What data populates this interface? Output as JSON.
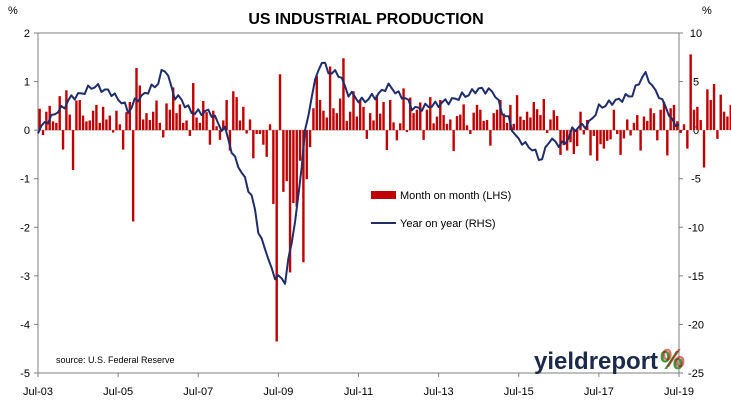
{
  "chart_data": {
    "type": "bar+line",
    "title": "US INDUSTRIAL PRODUCTION",
    "left_unit": "%",
    "right_unit": "%",
    "left_axis": {
      "min": -5,
      "max": 2,
      "ticks": [
        "2",
        "1",
        "0",
        "-1",
        "-2",
        "-3",
        "-4",
        "-5"
      ]
    },
    "right_axis": {
      "min": -25,
      "max": 10,
      "ticks": [
        "10",
        "5",
        "0",
        "-5",
        "-10",
        "-15",
        "-20",
        "-25"
      ]
    },
    "x_start": "2003-07",
    "x_end": "2019-07",
    "x_ticks": [
      "Jul-03",
      "Jul-05",
      "Jul-07",
      "Jul-09",
      "Jul-11",
      "Jul-13",
      "Jul-15",
      "Jul-17",
      "Jul-19"
    ],
    "series": [
      {
        "name": "Month on month (LHS)",
        "type": "bar",
        "axis": "left",
        "color": "#c00000",
        "start": "2003-07",
        "values": [
          0.44,
          -0.1,
          0.38,
          0.5,
          0.18,
          0.15,
          0.7,
          -0.4,
          0.82,
          0.32,
          -0.82,
          0.61,
          0.62,
          0.3,
          0.18,
          0.2,
          0.4,
          0.52,
          0.15,
          0.48,
          0.22,
          0.3,
          -0.05,
          0.4,
          0.12,
          -0.4,
          0.37,
          0.58,
          -1.88,
          1.28,
          0.92,
          0.22,
          0.35,
          0.21,
          0.38,
          0.61,
          0.15,
          -0.15,
          0.55,
          0.42,
          0.88,
          0.35,
          0.53,
          0.15,
          0.2,
          -0.12,
          0.97,
          0.26,
          0.15,
          0.6,
          0.37,
          -0.3,
          0.4,
          0.08,
          -0.2,
          0.2,
          0.62,
          -0.42,
          0.8,
          0.68,
          0.2,
          0.48,
          -0.07,
          0.22,
          -0.58,
          -0.08,
          -0.08,
          -0.3,
          -0.55,
          0.12,
          -1.52,
          -4.35,
          1.15,
          -1.27,
          -1.05,
          -2.93,
          -1.5,
          -1.58,
          -0.63,
          -2.72,
          -1.01,
          -0.35,
          0.45,
          1.12,
          0.62,
          0.4,
          0.26,
          1.31,
          0.45,
          0.35,
          0.65,
          1.48,
          0.19,
          0.38,
          0.8,
          0.28,
          0.62,
          0.48,
          -0.18,
          0.35,
          0.2,
          0.72,
          0.34,
          0.58,
          -0.41,
          0.62,
          0.16,
          -0.21,
          0.14,
          0.86,
          -0.04,
          0.67,
          0.35,
          0.42,
          0.57,
          -0.2,
          0.42,
          0.68,
          0.14,
          0.28,
          0.62,
          0.31,
          0.13,
          0.22,
          -0.43,
          0.29,
          0.32,
          0.53,
          0.1,
          -0.08,
          0.36,
          0.52,
          0.42,
          0.19,
          0.21,
          -0.32,
          0.35,
          0.42,
          0.62,
          0.34,
          0.15,
          0.52,
          0.13,
          0.72,
          0.28,
          0.21,
          0.38,
          0.26,
          0.58,
          0.43,
          0.31,
          0.64,
          -0.06,
          0.22,
          0.41,
          0.29,
          -0.51,
          -0.31,
          -0.42,
          -0.25,
          -0.49,
          -0.33,
          0.38,
          -0.09,
          0.21,
          -0.52,
          -0.12,
          -0.63,
          -0.29,
          -0.38,
          -0.22,
          -0.19,
          0.42,
          -0.08,
          -0.51,
          -0.17,
          0.22,
          -0.11,
          0.15,
          0.31,
          -0.42,
          0.28,
          0.19,
          0.45,
          0.35,
          -0.21,
          0.42,
          0.58,
          -0.52,
          0.45,
          0.52,
          0.18,
          -0.06,
          0.12,
          -0.38,
          1.56,
          0.42,
          0.48,
          0.21,
          -0.77,
          0.84,
          0.62,
          0.95,
          -0.18,
          0.73,
          0.38,
          0.28,
          0.52,
          0.78,
          -0.28,
          -0.45,
          -0.55,
          0.18,
          -0.62,
          0.38,
          0.23,
          -0.2
        ]
      },
      {
        "name": "Year on year (RHS)",
        "type": "line",
        "axis": "right",
        "color": "#1f2d6b",
        "knots": [
          [
            "2003-07",
            0.0
          ],
          [
            "2003-10",
            1.0
          ],
          [
            "2004-01",
            2.0
          ],
          [
            "2004-06",
            3.5
          ],
          [
            "2004-12",
            4.5
          ],
          [
            "2005-04",
            4.0
          ],
          [
            "2005-08",
            3.0
          ],
          [
            "2005-10",
            2.0
          ],
          [
            "2006-01",
            3.3
          ],
          [
            "2006-06",
            4.5
          ],
          [
            "2006-09",
            6.3
          ],
          [
            "2006-12",
            3.5
          ],
          [
            "2007-06",
            1.8
          ],
          [
            "2007-10",
            1.9
          ],
          [
            "2008-03",
            0.0
          ],
          [
            "2008-06",
            -3.0
          ],
          [
            "2008-09",
            -5.0
          ],
          [
            "2008-11",
            -7.0
          ],
          [
            "2009-02",
            -11.5
          ],
          [
            "2009-06",
            -15.0
          ],
          [
            "2009-09",
            -15.5
          ],
          [
            "2009-11",
            -11.5
          ],
          [
            "2010-01",
            -7.0
          ],
          [
            "2010-03",
            0.0
          ],
          [
            "2010-06",
            5.0
          ],
          [
            "2010-08",
            7.2
          ],
          [
            "2010-10",
            6.0
          ],
          [
            "2011-01",
            5.8
          ],
          [
            "2011-04",
            3.8
          ],
          [
            "2011-08",
            3.0
          ],
          [
            "2011-12",
            3.5
          ],
          [
            "2012-04",
            4.5
          ],
          [
            "2012-08",
            3.5
          ],
          [
            "2012-12",
            2.2
          ],
          [
            "2013-06",
            2.6
          ],
          [
            "2013-10",
            3.0
          ],
          [
            "2014-03",
            3.6
          ],
          [
            "2014-07",
            4.2
          ],
          [
            "2014-11",
            4.0
          ],
          [
            "2015-03",
            1.5
          ],
          [
            "2015-07",
            -1.0
          ],
          [
            "2015-10",
            -1.7
          ],
          [
            "2016-02",
            -3.0
          ],
          [
            "2016-04",
            -1.0
          ],
          [
            "2016-08",
            -1.5
          ],
          [
            "2016-12",
            0.2
          ],
          [
            "2017-03",
            0.5
          ],
          [
            "2017-08",
            2.5
          ],
          [
            "2017-12",
            3.0
          ],
          [
            "2018-04",
            3.5
          ],
          [
            "2018-09",
            5.7
          ],
          [
            "2018-12",
            4.0
          ],
          [
            "2019-03",
            2.5
          ],
          [
            "2019-05",
            0.8
          ],
          [
            "2019-07",
            0.6
          ]
        ]
      }
    ],
    "legend_position": "center-right",
    "grid": false
  },
  "source": "source: U.S. Federal Reserve",
  "logo": {
    "main": "yieldreport",
    "pct": "%",
    "pct_green": "#3a9b3a",
    "pct_red": "#c00000"
  }
}
